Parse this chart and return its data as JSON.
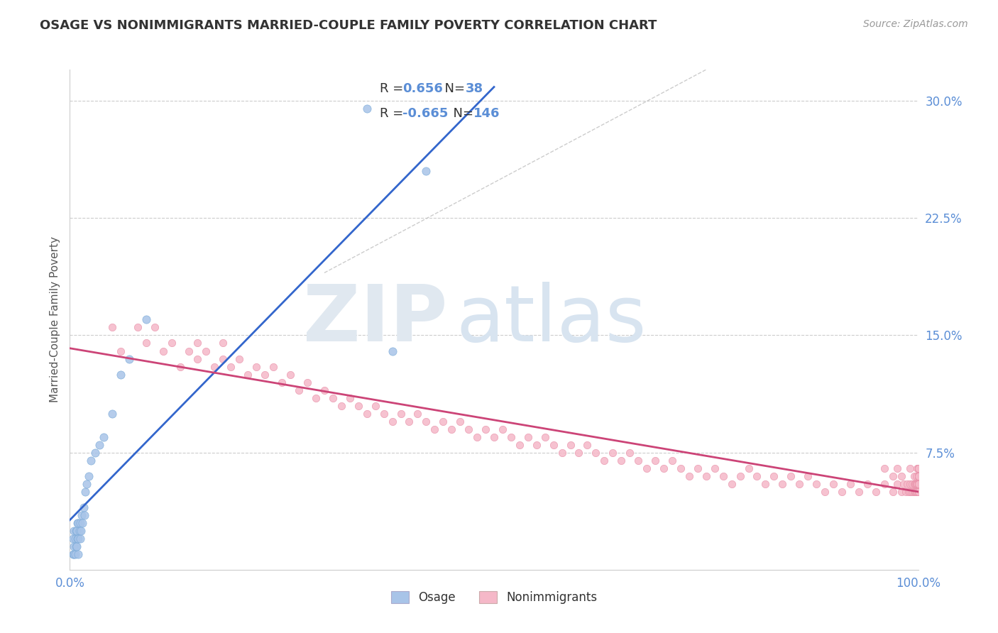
{
  "title": "OSAGE VS NONIMMIGRANTS MARRIED-COUPLE FAMILY POVERTY CORRELATION CHART",
  "source": "Source: ZipAtlas.com",
  "ylabel": "Married-Couple Family Poverty",
  "xlim": [
    0.0,
    1.0
  ],
  "ylim": [
    0.0,
    0.32
  ],
  "osage_R": 0.656,
  "osage_N": 38,
  "nonimm_R": -0.665,
  "nonimm_N": 146,
  "background_color": "#ffffff",
  "grid_color": "#cccccc",
  "title_color": "#333333",
  "axis_label_color": "#555555",
  "tick_color": "#5b8ed6",
  "osage_dot_color": "#a8c4e8",
  "osage_dot_edge": "#7aaad8",
  "nonimm_dot_color": "#f5b8c8",
  "nonimm_dot_edge": "#e890a8",
  "osage_line_color": "#3366cc",
  "nonimm_line_color": "#cc4477",
  "diag_line_color": "#c0c0c0",
  "legend_box_edge": "#cccccc",
  "legend_R_color": "#5b8ed6",
  "legend_N_color": "#5b8ed6",
  "legend_label_color": "#333333",
  "osage_points_x": [
    0.004,
    0.004,
    0.005,
    0.005,
    0.005,
    0.006,
    0.006,
    0.007,
    0.007,
    0.008,
    0.008,
    0.009,
    0.009,
    0.01,
    0.01,
    0.01,
    0.011,
    0.012,
    0.012,
    0.013,
    0.014,
    0.015,
    0.016,
    0.017,
    0.018,
    0.02,
    0.022,
    0.025,
    0.03,
    0.035,
    0.04,
    0.05,
    0.06,
    0.07,
    0.09,
    0.35,
    0.38,
    0.42
  ],
  "osage_points_y": [
    0.01,
    0.02,
    0.01,
    0.015,
    0.025,
    0.01,
    0.02,
    0.015,
    0.025,
    0.015,
    0.025,
    0.02,
    0.03,
    0.01,
    0.02,
    0.03,
    0.025,
    0.02,
    0.03,
    0.025,
    0.035,
    0.03,
    0.04,
    0.035,
    0.05,
    0.055,
    0.06,
    0.07,
    0.075,
    0.08,
    0.085,
    0.1,
    0.125,
    0.135,
    0.16,
    0.295,
    0.14,
    0.255
  ],
  "nonimm_points_x": [
    0.05,
    0.06,
    0.08,
    0.09,
    0.1,
    0.11,
    0.12,
    0.13,
    0.14,
    0.15,
    0.15,
    0.16,
    0.17,
    0.18,
    0.18,
    0.19,
    0.2,
    0.21,
    0.22,
    0.23,
    0.24,
    0.25,
    0.26,
    0.27,
    0.28,
    0.29,
    0.3,
    0.31,
    0.32,
    0.33,
    0.34,
    0.35,
    0.36,
    0.37,
    0.38,
    0.39,
    0.4,
    0.41,
    0.42,
    0.43,
    0.44,
    0.45,
    0.46,
    0.47,
    0.48,
    0.49,
    0.5,
    0.51,
    0.52,
    0.53,
    0.54,
    0.55,
    0.56,
    0.57,
    0.58,
    0.59,
    0.6,
    0.61,
    0.62,
    0.63,
    0.64,
    0.65,
    0.66,
    0.67,
    0.68,
    0.69,
    0.7,
    0.71,
    0.72,
    0.73,
    0.74,
    0.75,
    0.76,
    0.77,
    0.78,
    0.79,
    0.8,
    0.81,
    0.82,
    0.83,
    0.84,
    0.85,
    0.86,
    0.87,
    0.88,
    0.89,
    0.9,
    0.91,
    0.92,
    0.93,
    0.94,
    0.95,
    0.96,
    0.96,
    0.97,
    0.97,
    0.975,
    0.975,
    0.98,
    0.98,
    0.983,
    0.985,
    0.987,
    0.989,
    0.99,
    0.99,
    0.99,
    0.992,
    0.993,
    0.994,
    0.995,
    0.995,
    0.995,
    0.996,
    0.996,
    0.997,
    0.997,
    0.998,
    0.998,
    0.998,
    0.999,
    0.999,
    0.999,
    0.999,
    1.0,
    1.0,
    1.0,
    1.0,
    1.0,
    1.0,
    1.0,
    1.0,
    1.0,
    1.0,
    1.0,
    1.0,
    1.0,
    1.0,
    1.0,
    1.0,
    1.0,
    1.0,
    1.0,
    1.0,
    1.0,
    1.0
  ],
  "nonimm_points_y": [
    0.155,
    0.14,
    0.155,
    0.145,
    0.155,
    0.14,
    0.145,
    0.13,
    0.14,
    0.135,
    0.145,
    0.14,
    0.13,
    0.135,
    0.145,
    0.13,
    0.135,
    0.125,
    0.13,
    0.125,
    0.13,
    0.12,
    0.125,
    0.115,
    0.12,
    0.11,
    0.115,
    0.11,
    0.105,
    0.11,
    0.105,
    0.1,
    0.105,
    0.1,
    0.095,
    0.1,
    0.095,
    0.1,
    0.095,
    0.09,
    0.095,
    0.09,
    0.095,
    0.09,
    0.085,
    0.09,
    0.085,
    0.09,
    0.085,
    0.08,
    0.085,
    0.08,
    0.085,
    0.08,
    0.075,
    0.08,
    0.075,
    0.08,
    0.075,
    0.07,
    0.075,
    0.07,
    0.075,
    0.07,
    0.065,
    0.07,
    0.065,
    0.07,
    0.065,
    0.06,
    0.065,
    0.06,
    0.065,
    0.06,
    0.055,
    0.06,
    0.065,
    0.06,
    0.055,
    0.06,
    0.055,
    0.06,
    0.055,
    0.06,
    0.055,
    0.05,
    0.055,
    0.05,
    0.055,
    0.05,
    0.055,
    0.05,
    0.055,
    0.065,
    0.05,
    0.06,
    0.055,
    0.065,
    0.05,
    0.06,
    0.055,
    0.05,
    0.055,
    0.05,
    0.055,
    0.05,
    0.065,
    0.05,
    0.055,
    0.05,
    0.055,
    0.05,
    0.06,
    0.05,
    0.055,
    0.05,
    0.055,
    0.05,
    0.06,
    0.055,
    0.05,
    0.055,
    0.065,
    0.055,
    0.05,
    0.055,
    0.06,
    0.055,
    0.065,
    0.05,
    0.06,
    0.055,
    0.065,
    0.06,
    0.05,
    0.055,
    0.065,
    0.06,
    0.055,
    0.05,
    0.055,
    0.065,
    0.06,
    0.055,
    0.065,
    0.06
  ]
}
